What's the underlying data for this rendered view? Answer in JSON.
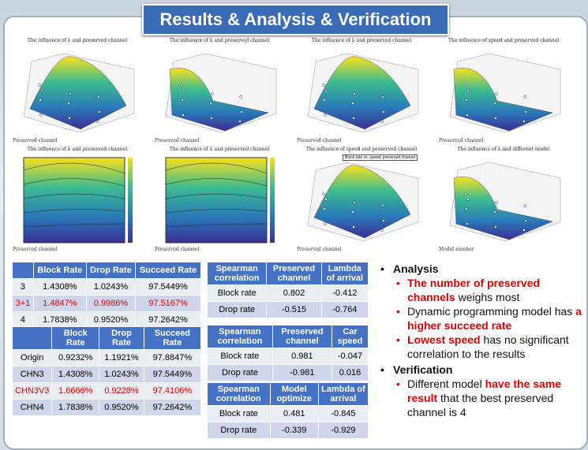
{
  "header": {
    "title": "Results & Analysis & Verification"
  },
  "plots": [
    {
      "title": "The influence of λ and preserved channel",
      "axis_label": "Preserved channel"
    },
    {
      "title": "The influence of λ and preserved channel",
      "axis_label": "Preserved channel"
    },
    {
      "title": "The influence of λ and preserved channel",
      "axis_label": "Preserved channel"
    },
    {
      "title": "The influence of speed and preserved channel",
      "axis_label": "Preserved channel"
    },
    {
      "title": "The influence of λ and preserved channel",
      "axis_label": "Preserved channel"
    },
    {
      "title": "The influence of λ and preserved channel",
      "axis_label": "Preserved channel"
    },
    {
      "title": "The influence of speed and preserved channel",
      "axis_label": "Preserved channel",
      "legend": "Block rate vs. speed, preserved channel"
    },
    {
      "title": "The influence of λ and different model",
      "axis_label": "Model number"
    }
  ],
  "tables": [
    {
      "header": [
        "",
        "Block Rate",
        "Drop Rate",
        "Succeed Rate"
      ],
      "rows": [
        [
          "3",
          "1.4308%",
          "1.0243%",
          "97.5449%"
        ],
        [
          "3+1",
          "1.4847%",
          "0.9986%",
          "97.5167%"
        ],
        [
          "4",
          "1.7838%",
          "0.9520%",
          "97.2642%"
        ]
      ],
      "highlight_row": 1
    },
    {
      "header": [
        "",
        "Block Rate",
        "Drop Rate",
        "Succeed Rate"
      ],
      "rows": [
        [
          "Origin",
          "0.9232%",
          "1.1921%",
          "97.8847%"
        ],
        [
          "CHN3",
          "1.4308%",
          "1.0243%",
          "97.5449%"
        ],
        [
          "CHN3V3",
          "1.6666%",
          "0.9228%",
          "97.4106%"
        ],
        [
          "CHN4",
          "1.7838%",
          "0.9520%",
          "97.2642%"
        ]
      ],
      "highlight_row": 2
    },
    {
      "header": [
        "Spearman correlation",
        "Preserved channel",
        "Lambda of arrival"
      ],
      "rows": [
        [
          "Block rate",
          "0.802",
          "-0.412"
        ],
        [
          "Drop rate",
          "-0.515",
          "-0.764"
        ]
      ]
    },
    {
      "header": [
        "Spearman correlation",
        "Preserved channel",
        "Car speed"
      ],
      "rows": [
        [
          "Block rate",
          "0.981",
          "-0.047"
        ],
        [
          "Drop rate",
          "-0.981",
          "0.016"
        ]
      ]
    },
    {
      "header": [
        "Spearman correlation",
        "Model optimize",
        "Lambda of arrival"
      ],
      "rows": [
        [
          "Block rate",
          "0.481",
          "-0.845"
        ],
        [
          "Drop rate",
          "-0.339",
          "-0.929"
        ]
      ]
    }
  ],
  "bullets": [
    {
      "level": 1,
      "parts": [
        {
          "text": "Analysis",
          "emphasis": false
        }
      ]
    },
    {
      "level": 2,
      "parts": [
        {
          "text": "The number of preserved channels",
          "emphasis": true
        },
        {
          "text": " weighs most",
          "emphasis": false
        }
      ]
    },
    {
      "level": 2,
      "parts": [
        {
          "text": "Dynamic programming model has ",
          "emphasis": false
        },
        {
          "text": "a higher succeed rate",
          "emphasis": true
        }
      ]
    },
    {
      "level": 2,
      "parts": [
        {
          "text": "Lowest speed",
          "emphasis": true
        },
        {
          "text": " has no significant correlation to the results",
          "emphasis": false
        }
      ]
    },
    {
      "level": 1,
      "parts": [
        {
          "text": "Verification",
          "emphasis": false
        }
      ]
    },
    {
      "level": 2,
      "parts": [
        {
          "text": "Different model ",
          "emphasis": false
        },
        {
          "text": "have the same result",
          "emphasis": true
        },
        {
          "text": " that the best preserved channel is 4",
          "emphasis": false
        }
      ]
    }
  ]
}
